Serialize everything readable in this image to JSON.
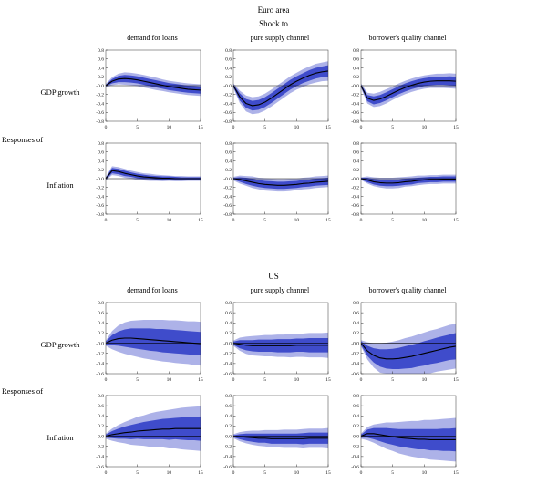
{
  "chart_data": {
    "type": "line",
    "bands": true,
    "x": [
      0,
      1,
      2,
      3,
      4,
      5,
      6,
      7,
      8,
      9,
      10,
      11,
      12,
      13,
      14,
      15
    ],
    "xticks": [
      0,
      5,
      10,
      15
    ],
    "colors": {
      "outer_band": "#adb2e8",
      "inner_band": "#3f4ccb",
      "line": "#000000"
    },
    "sections": [
      {
        "title": "Euro area",
        "shock_label": "Shock to",
        "responses_label": "Responses of",
        "columns": [
          "demand for loans",
          "pure supply channel",
          "borrower's quality channel"
        ],
        "ylim": [
          -0.8,
          0.8
        ],
        "yticks": [
          0.8,
          0.6,
          0.4,
          0.2,
          0,
          -0.2,
          -0.4,
          -0.6,
          -0.8
        ],
        "rows": [
          {
            "label": "GDP growth",
            "charts": [
              {
                "center": [
                  0.0,
                  0.1,
                  0.15,
                  0.16,
                  0.15,
                  0.13,
                  0.1,
                  0.07,
                  0.04,
                  0.01,
                  -0.02,
                  -0.04,
                  -0.06,
                  -0.08,
                  -0.09,
                  -0.1
                ],
                "inner_hw": [
                  0.02,
                  0.05,
                  0.07,
                  0.08,
                  0.08,
                  0.08,
                  0.08,
                  0.08,
                  0.08,
                  0.08,
                  0.08,
                  0.08,
                  0.08,
                  0.08,
                  0.08,
                  0.08
                ],
                "outer_hw": [
                  0.04,
                  0.09,
                  0.12,
                  0.14,
                  0.14,
                  0.14,
                  0.14,
                  0.14,
                  0.14,
                  0.13,
                  0.13,
                  0.13,
                  0.13,
                  0.13,
                  0.13,
                  0.13
                ]
              },
              {
                "center": [
                  0.0,
                  -0.25,
                  -0.4,
                  -0.45,
                  -0.43,
                  -0.37,
                  -0.28,
                  -0.18,
                  -0.08,
                  0.02,
                  0.1,
                  0.17,
                  0.23,
                  0.28,
                  0.31,
                  0.33
                ],
                "inner_hw": [
                  0.03,
                  0.08,
                  0.1,
                  0.11,
                  0.11,
                  0.11,
                  0.11,
                  0.11,
                  0.11,
                  0.11,
                  0.11,
                  0.11,
                  0.12,
                  0.12,
                  0.12,
                  0.13
                ],
                "outer_hw": [
                  0.05,
                  0.14,
                  0.18,
                  0.19,
                  0.19,
                  0.19,
                  0.19,
                  0.19,
                  0.19,
                  0.19,
                  0.19,
                  0.2,
                  0.2,
                  0.21,
                  0.21,
                  0.22
                ]
              },
              {
                "center": [
                  0.0,
                  -0.28,
                  -0.33,
                  -0.3,
                  -0.24,
                  -0.17,
                  -0.1,
                  -0.04,
                  0.01,
                  0.05,
                  0.08,
                  0.1,
                  0.11,
                  0.11,
                  0.11,
                  0.1
                ],
                "inner_hw": [
                  0.03,
                  0.07,
                  0.09,
                  0.09,
                  0.09,
                  0.09,
                  0.09,
                  0.09,
                  0.09,
                  0.09,
                  0.09,
                  0.09,
                  0.09,
                  0.09,
                  0.1,
                  0.1
                ],
                "outer_hw": [
                  0.05,
                  0.12,
                  0.15,
                  0.16,
                  0.16,
                  0.15,
                  0.15,
                  0.15,
                  0.15,
                  0.15,
                  0.15,
                  0.15,
                  0.16,
                  0.16,
                  0.17,
                  0.17
                ]
              }
            ]
          },
          {
            "label": "Inflation",
            "charts": [
              {
                "center": [
                  0.0,
                  0.18,
                  0.16,
                  0.12,
                  0.09,
                  0.06,
                  0.04,
                  0.03,
                  0.02,
                  0.01,
                  0.01,
                  0.0,
                  0.0,
                  0.0,
                  0.0,
                  0.0
                ],
                "inner_hw": [
                  0.02,
                  0.06,
                  0.06,
                  0.06,
                  0.05,
                  0.05,
                  0.05,
                  0.04,
                  0.04,
                  0.04,
                  0.04,
                  0.04,
                  0.03,
                  0.03,
                  0.03,
                  0.03
                ],
                "outer_hw": [
                  0.04,
                  0.1,
                  0.1,
                  0.1,
                  0.09,
                  0.09,
                  0.08,
                  0.08,
                  0.07,
                  0.07,
                  0.06,
                  0.06,
                  0.06,
                  0.05,
                  0.05,
                  0.05
                ]
              },
              {
                "center": [
                  0.0,
                  -0.02,
                  -0.05,
                  -0.08,
                  -0.11,
                  -0.13,
                  -0.14,
                  -0.15,
                  -0.15,
                  -0.14,
                  -0.13,
                  -0.11,
                  -0.1,
                  -0.08,
                  -0.07,
                  -0.06
                ],
                "inner_hw": [
                  0.02,
                  0.05,
                  0.07,
                  0.08,
                  0.08,
                  0.08,
                  0.08,
                  0.08,
                  0.08,
                  0.08,
                  0.08,
                  0.08,
                  0.08,
                  0.08,
                  0.08,
                  0.08
                ],
                "outer_hw": [
                  0.04,
                  0.09,
                  0.11,
                  0.13,
                  0.13,
                  0.14,
                  0.14,
                  0.14,
                  0.14,
                  0.14,
                  0.13,
                  0.13,
                  0.13,
                  0.13,
                  0.13,
                  0.13
                ]
              },
              {
                "center": [
                  0.0,
                  -0.03,
                  -0.07,
                  -0.09,
                  -0.1,
                  -0.1,
                  -0.09,
                  -0.07,
                  -0.06,
                  -0.04,
                  -0.03,
                  -0.02,
                  -0.02,
                  -0.01,
                  -0.01,
                  -0.01
                ],
                "inner_hw": [
                  0.02,
                  0.05,
                  0.06,
                  0.07,
                  0.07,
                  0.07,
                  0.07,
                  0.07,
                  0.07,
                  0.06,
                  0.06,
                  0.06,
                  0.06,
                  0.06,
                  0.06,
                  0.06
                ],
                "outer_hw": [
                  0.03,
                  0.08,
                  0.1,
                  0.11,
                  0.12,
                  0.12,
                  0.12,
                  0.11,
                  0.11,
                  0.11,
                  0.1,
                  0.1,
                  0.1,
                  0.1,
                  0.1,
                  0.1
                ]
              }
            ]
          }
        ]
      },
      {
        "title": "US",
        "responses_label": "Responses of",
        "columns": [
          "demand for loans",
          "pure supply channel",
          "borrower's quality channel"
        ],
        "ylim": [
          -0.6,
          0.8
        ],
        "yticks": [
          0.8,
          0.6,
          0.4,
          0.2,
          0,
          -0.2,
          -0.4,
          -0.6
        ],
        "rows": [
          {
            "label": "GDP growth",
            "charts": [
              {
                "center": [
                  0.0,
                  0.06,
                  0.09,
                  0.1,
                  0.1,
                  0.09,
                  0.08,
                  0.07,
                  0.06,
                  0.05,
                  0.04,
                  0.03,
                  0.02,
                  0.01,
                  0.0,
                  -0.01
                ],
                "inner_hw": [
                  0.03,
                  0.1,
                  0.14,
                  0.17,
                  0.19,
                  0.2,
                  0.21,
                  0.22,
                  0.22,
                  0.23,
                  0.23,
                  0.23,
                  0.23,
                  0.23,
                  0.23,
                  0.23
                ],
                "outer_hw": [
                  0.05,
                  0.18,
                  0.26,
                  0.31,
                  0.34,
                  0.36,
                  0.38,
                  0.39,
                  0.4,
                  0.41,
                  0.41,
                  0.42,
                  0.42,
                  0.42,
                  0.43,
                  0.43
                ]
              },
              {
                "center": [
                  0.0,
                  -0.02,
                  -0.04,
                  -0.05,
                  -0.05,
                  -0.05,
                  -0.05,
                  -0.05,
                  -0.05,
                  -0.05,
                  -0.04,
                  -0.04,
                  -0.04,
                  -0.04,
                  -0.04,
                  -0.04
                ],
                "inner_hw": [
                  0.03,
                  0.08,
                  0.1,
                  0.11,
                  0.12,
                  0.12,
                  0.12,
                  0.13,
                  0.13,
                  0.13,
                  0.13,
                  0.13,
                  0.14,
                  0.14,
                  0.14,
                  0.14
                ],
                "outer_hw": [
                  0.05,
                  0.13,
                  0.17,
                  0.19,
                  0.2,
                  0.21,
                  0.21,
                  0.22,
                  0.22,
                  0.23,
                  0.23,
                  0.23,
                  0.24,
                  0.24,
                  0.24,
                  0.25
                ]
              },
              {
                "center": [
                  0.0,
                  -0.15,
                  -0.24,
                  -0.29,
                  -0.31,
                  -0.31,
                  -0.3,
                  -0.28,
                  -0.26,
                  -0.23,
                  -0.2,
                  -0.17,
                  -0.14,
                  -0.11,
                  -0.08,
                  -0.06
                ],
                "inner_hw": [
                  0.04,
                  0.1,
                  0.14,
                  0.17,
                  0.19,
                  0.2,
                  0.21,
                  0.22,
                  0.23,
                  0.23,
                  0.24,
                  0.24,
                  0.25,
                  0.25,
                  0.25,
                  0.26
                ],
                "outer_hw": [
                  0.06,
                  0.17,
                  0.24,
                  0.29,
                  0.32,
                  0.34,
                  0.36,
                  0.38,
                  0.39,
                  0.4,
                  0.41,
                  0.42,
                  0.42,
                  0.43,
                  0.44,
                  0.44
                ]
              }
            ]
          },
          {
            "label": "Inflation",
            "charts": [
              {
                "center": [
                  0.0,
                  0.03,
                  0.05,
                  0.07,
                  0.08,
                  0.1,
                  0.11,
                  0.12,
                  0.13,
                  0.14,
                  0.14,
                  0.15,
                  0.15,
                  0.15,
                  0.15,
                  0.15
                ],
                "inner_hw": [
                  0.03,
                  0.07,
                  0.1,
                  0.12,
                  0.14,
                  0.15,
                  0.17,
                  0.18,
                  0.19,
                  0.2,
                  0.21,
                  0.21,
                  0.22,
                  0.23,
                  0.23,
                  0.24
                ],
                "outer_hw": [
                  0.05,
                  0.12,
                  0.17,
                  0.21,
                  0.25,
                  0.28,
                  0.3,
                  0.33,
                  0.35,
                  0.36,
                  0.38,
                  0.39,
                  0.41,
                  0.42,
                  0.43,
                  0.44
                ]
              },
              {
                "center": [
                  0.0,
                  -0.01,
                  -0.02,
                  -0.03,
                  -0.04,
                  -0.04,
                  -0.05,
                  -0.05,
                  -0.05,
                  -0.05,
                  -0.05,
                  -0.05,
                  -0.04,
                  -0.04,
                  -0.04,
                  -0.04
                ],
                "inner_hw": [
                  0.02,
                  0.05,
                  0.07,
                  0.08,
                  0.09,
                  0.09,
                  0.1,
                  0.1,
                  0.1,
                  0.1,
                  0.1,
                  0.11,
                  0.11,
                  0.11,
                  0.11,
                  0.11
                ],
                "outer_hw": [
                  0.04,
                  0.09,
                  0.12,
                  0.14,
                  0.15,
                  0.16,
                  0.17,
                  0.17,
                  0.18,
                  0.18,
                  0.18,
                  0.19,
                  0.19,
                  0.19,
                  0.19,
                  0.2
                ]
              },
              {
                "center": [
                  0.0,
                  0.05,
                  0.05,
                  0.03,
                  0.01,
                  -0.01,
                  -0.03,
                  -0.04,
                  -0.05,
                  -0.06,
                  -0.06,
                  -0.07,
                  -0.07,
                  -0.07,
                  -0.07,
                  -0.07
                ],
                "inner_hw": [
                  0.03,
                  0.08,
                  0.11,
                  0.13,
                  0.15,
                  0.16,
                  0.17,
                  0.18,
                  0.19,
                  0.2,
                  0.2,
                  0.21,
                  0.21,
                  0.22,
                  0.22,
                  0.23
                ],
                "outer_hw": [
                  0.05,
                  0.13,
                  0.18,
                  0.22,
                  0.26,
                  0.28,
                  0.31,
                  0.33,
                  0.35,
                  0.36,
                  0.38,
                  0.39,
                  0.4,
                  0.41,
                  0.42,
                  0.43
                ]
              }
            ]
          }
        ]
      }
    ]
  }
}
